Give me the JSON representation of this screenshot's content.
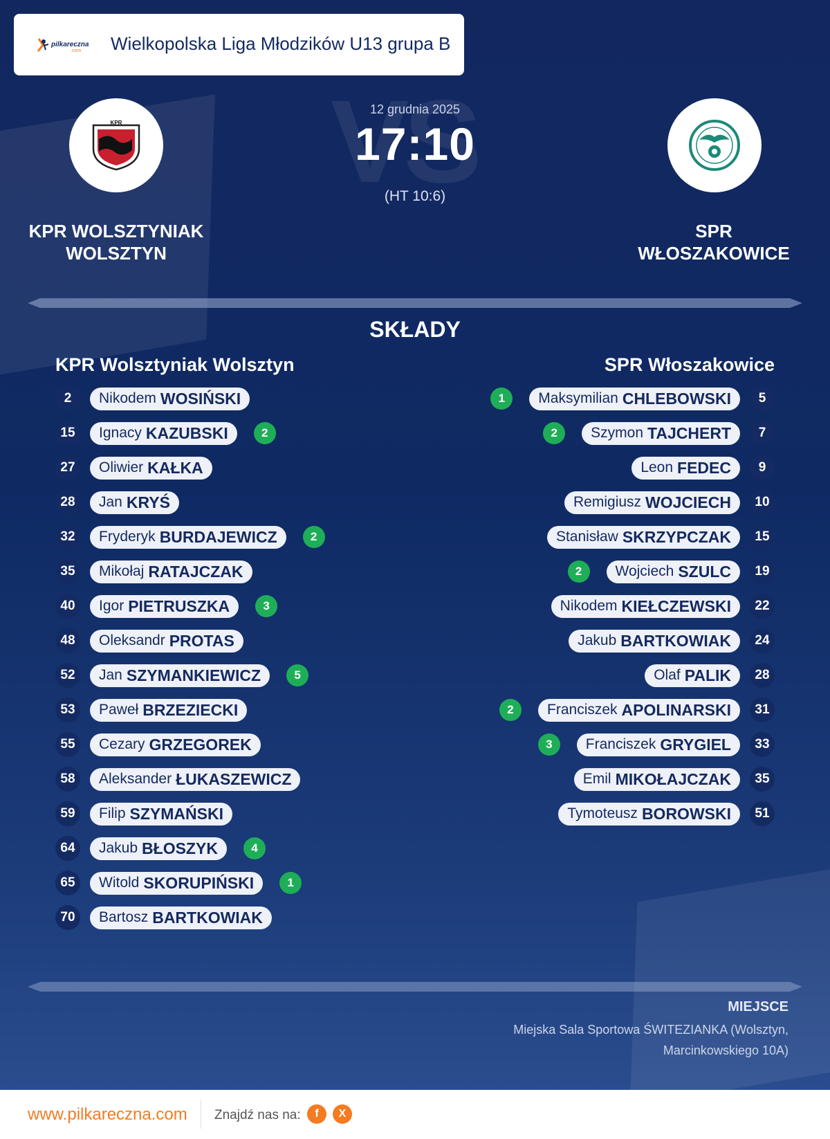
{
  "league": {
    "logo_text_top": "pilkareczna",
    "logo_text_bottom": ".com",
    "name": "Wielkopolska Liga Młodzików U13 grupa B"
  },
  "match": {
    "date": "12 grudnia 2025",
    "score": "17:10",
    "halftime": "(HT 10:6)",
    "vs_text": "VS"
  },
  "home": {
    "name_line1": "KPR WOLSZTYNIAK",
    "name_line2": "WOLSZTYN",
    "squad_title": "KPR Wolsztyniak Wolsztyn",
    "logo_icon": "kpr-wolsztyniak-crest",
    "logo_letters": "KPR",
    "players": [
      {
        "number": "2",
        "first": "Nikodem",
        "last": "WOSIŃSKI",
        "goals": ""
      },
      {
        "number": "15",
        "first": "Ignacy",
        "last": "KAZUBSKI",
        "goals": "2"
      },
      {
        "number": "27",
        "first": "Oliwier",
        "last": "KAŁKA",
        "goals": ""
      },
      {
        "number": "28",
        "first": "Jan",
        "last": "KRYŚ",
        "goals": ""
      },
      {
        "number": "32",
        "first": "Fryderyk",
        "last": "BURDAJEWICZ",
        "goals": "2"
      },
      {
        "number": "35",
        "first": "Mikołaj",
        "last": "RATAJCZAK",
        "goals": ""
      },
      {
        "number": "40",
        "first": "Igor",
        "last": "PIETRUSZKA",
        "goals": "3"
      },
      {
        "number": "48",
        "first": "Oleksandr",
        "last": "PROTAS",
        "goals": ""
      },
      {
        "number": "52",
        "first": "Jan",
        "last": "SZYMANKIEWICZ",
        "goals": "5"
      },
      {
        "number": "53",
        "first": "Paweł",
        "last": "BRZEZIECKI",
        "goals": ""
      },
      {
        "number": "55",
        "first": "Cezary",
        "last": "GRZEGOREK",
        "goals": ""
      },
      {
        "number": "58",
        "first": "Aleksander",
        "last": "ŁUKASZEWICZ",
        "goals": ""
      },
      {
        "number": "59",
        "first": "Filip",
        "last": "SZYMAŃSKI",
        "goals": ""
      },
      {
        "number": "64",
        "first": "Jakub",
        "last": "BŁOSZYK",
        "goals": "4"
      },
      {
        "number": "65",
        "first": "Witold",
        "last": "SKORUPIŃSKI",
        "goals": "1"
      },
      {
        "number": "70",
        "first": "Bartosz",
        "last": "BARTKOWIAK",
        "goals": ""
      }
    ]
  },
  "away": {
    "name_line1": "SPR",
    "name_line2": "WŁOSZAKOWICE",
    "squad_title": "SPR Włoszakowice",
    "logo_icon": "spr-wloszakowice-crest",
    "players": [
      {
        "number": "5",
        "first": "Maksymilian",
        "last": "CHLEBOWSKI",
        "goals": "1"
      },
      {
        "number": "7",
        "first": "Szymon",
        "last": "TAJCHERT",
        "goals": "2"
      },
      {
        "number": "9",
        "first": "Leon",
        "last": "FEDEC",
        "goals": ""
      },
      {
        "number": "10",
        "first": "Remigiusz",
        "last": "WOJCIECH",
        "goals": ""
      },
      {
        "number": "15",
        "first": "Stanisław",
        "last": "SKRZYPCZAK",
        "goals": ""
      },
      {
        "number": "19",
        "first": "Wojciech",
        "last": "SZULC",
        "goals": "2"
      },
      {
        "number": "22",
        "first": "Nikodem",
        "last": "KIEŁCZEWSKI",
        "goals": ""
      },
      {
        "number": "24",
        "first": "Jakub",
        "last": "BARTKOWIAK",
        "goals": ""
      },
      {
        "number": "28",
        "first": "Olaf",
        "last": "PALIK",
        "goals": ""
      },
      {
        "number": "31",
        "first": "Franciszek",
        "last": "APOLINARSKI",
        "goals": "2"
      },
      {
        "number": "33",
        "first": "Franciszek",
        "last": "GRYGIEL",
        "goals": "3"
      },
      {
        "number": "35",
        "first": "Emil",
        "last": "MIKOŁAJCZAK",
        "goals": ""
      },
      {
        "number": "51",
        "first": "Tymoteusz",
        "last": "BOROWSKI",
        "goals": ""
      }
    ]
  },
  "section_title": "SKŁADY",
  "venue": {
    "label": "MIEJSCE",
    "text": "Miejska Sala Sportowa ŚWITEZIANKA (Wolsztyn, Marcinkowskiego 10A)"
  },
  "footer": {
    "url": "www.pilkareczna.com",
    "find_us": "Znajdź nas na:",
    "facebook_icon": "f",
    "x_icon": "X"
  },
  "colors": {
    "background": "#13275f",
    "accent_orange": "#f47b20",
    "goal_green": "#1fae58",
    "badge_navy": "#142a62"
  }
}
